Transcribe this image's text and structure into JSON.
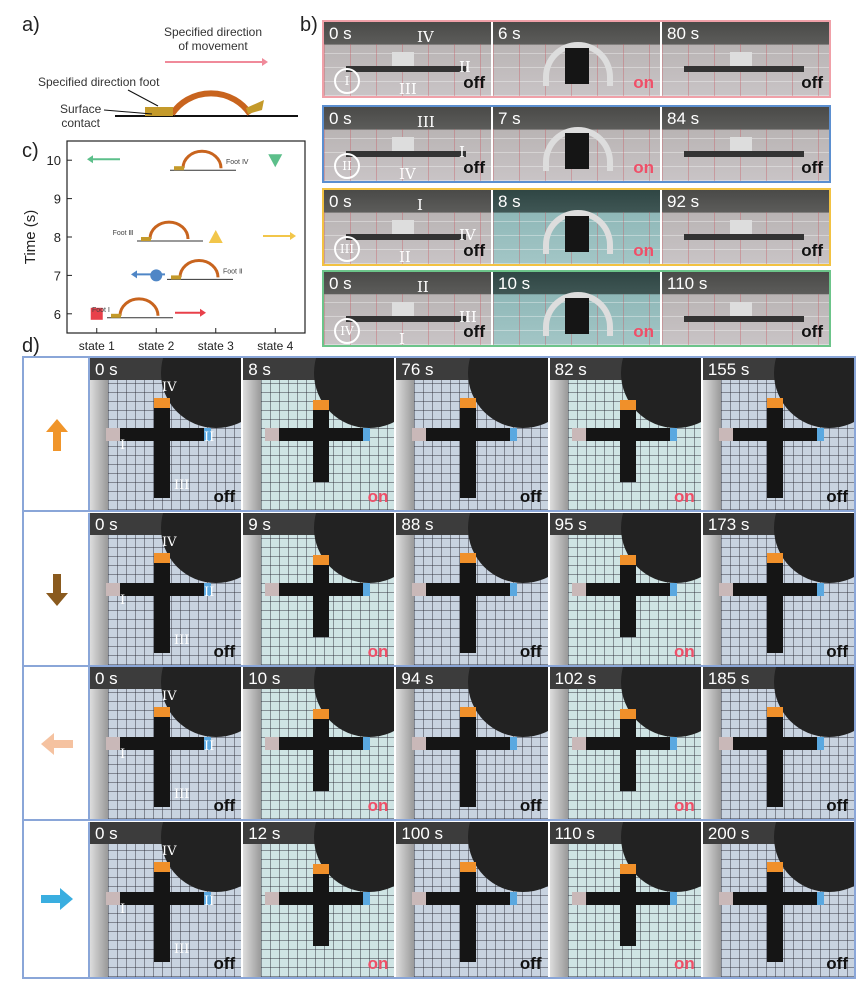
{
  "panel_a": {
    "label": "a)",
    "movement_label_line1": "Specified direction",
    "movement_label_line2": "of movement",
    "foot_label": "Specified direction foot",
    "surface_label_line1": "Surface",
    "surface_label_line2": "contact",
    "colors": {
      "arch": "#c8641e",
      "foot": "#c49a2a",
      "arrow": "#f08a9a"
    }
  },
  "panel_b": {
    "label": "b)",
    "rows": [
      {
        "border": "#f0a0a8",
        "foot": "I",
        "labels": [
          "IV",
          "II",
          "III"
        ],
        "frames": [
          {
            "time": "0 s",
            "state": "off"
          },
          {
            "time": "6 s",
            "state": "on"
          },
          {
            "time": "80 s",
            "state": "off"
          }
        ]
      },
      {
        "border": "#5b8fd0",
        "foot": "II",
        "labels": [
          "III",
          "I",
          "IV"
        ],
        "frames": [
          {
            "time": "0 s",
            "state": "off"
          },
          {
            "time": "7 s",
            "state": "on"
          },
          {
            "time": "84 s",
            "state": "off"
          }
        ]
      },
      {
        "border": "#f2c242",
        "foot": "III",
        "labels": [
          "I",
          "IV",
          "II"
        ],
        "frames": [
          {
            "time": "0 s",
            "state": "off"
          },
          {
            "time": "8 s",
            "state": "on"
          },
          {
            "time": "92 s",
            "state": "off"
          }
        ]
      },
      {
        "border": "#6cc48a",
        "foot": "IV",
        "labels": [
          "II",
          "III",
          "I"
        ],
        "frames": [
          {
            "time": "0 s",
            "state": "off"
          },
          {
            "time": "10 s",
            "state": "on"
          },
          {
            "time": "110 s",
            "state": "off"
          }
        ]
      }
    ]
  },
  "panel_c": {
    "label": "c)",
    "chart_data": {
      "type": "scatter",
      "categories": [
        "state 1",
        "state 2",
        "state 3",
        "state 4"
      ],
      "ylabel": "Time (s)",
      "xlabel": "",
      "ylim": [
        5.5,
        10.5
      ],
      "yticks": [
        6,
        7,
        8,
        9,
        10
      ],
      "grid": false,
      "points": [
        {
          "x": "state 1",
          "y": 6,
          "marker": "square",
          "color": "#e8404a",
          "annotation": "Foot Ⅰ",
          "direction": "right"
        },
        {
          "x": "state 2",
          "y": 7,
          "marker": "circle",
          "color": "#4f86c6",
          "annotation": "Foot Ⅱ",
          "direction": "left"
        },
        {
          "x": "state 3",
          "y": 8,
          "marker": "triangle-up",
          "color": "#f2c64a",
          "annotation": "Foot Ⅲ",
          "direction": "right"
        },
        {
          "x": "state 4",
          "y": 10,
          "marker": "triangle-down",
          "color": "#5cbf8a",
          "annotation": "Foot Ⅳ",
          "direction": "left"
        }
      ]
    }
  },
  "panel_d": {
    "label": "d)",
    "rows": [
      {
        "direction": "up",
        "arrow_color": "#f0952a",
        "times": [
          "0 s",
          "8 s",
          "76 s",
          "82 s",
          "155 s"
        ],
        "states": [
          "off",
          "on",
          "off",
          "on",
          "off"
        ]
      },
      {
        "direction": "down",
        "arrow_color": "#8a5a1e",
        "times": [
          "0 s",
          "9 s",
          "88 s",
          "95 s",
          "173 s"
        ],
        "states": [
          "off",
          "on",
          "off",
          "on",
          "off"
        ]
      },
      {
        "direction": "left",
        "arrow_color": "#f5c2a0",
        "times": [
          "0 s",
          "10 s",
          "94 s",
          "102 s",
          "185 s"
        ],
        "states": [
          "off",
          "on",
          "off",
          "on",
          "off"
        ]
      },
      {
        "direction": "right",
        "arrow_color": "#3aaee0",
        "times": [
          "0 s",
          "12 s",
          "100 s",
          "110 s",
          "200 s"
        ],
        "states": [
          "off",
          "on",
          "off",
          "on",
          "off"
        ]
      }
    ],
    "foot_labels": [
      "IV",
      "I",
      "II",
      "III"
    ]
  }
}
